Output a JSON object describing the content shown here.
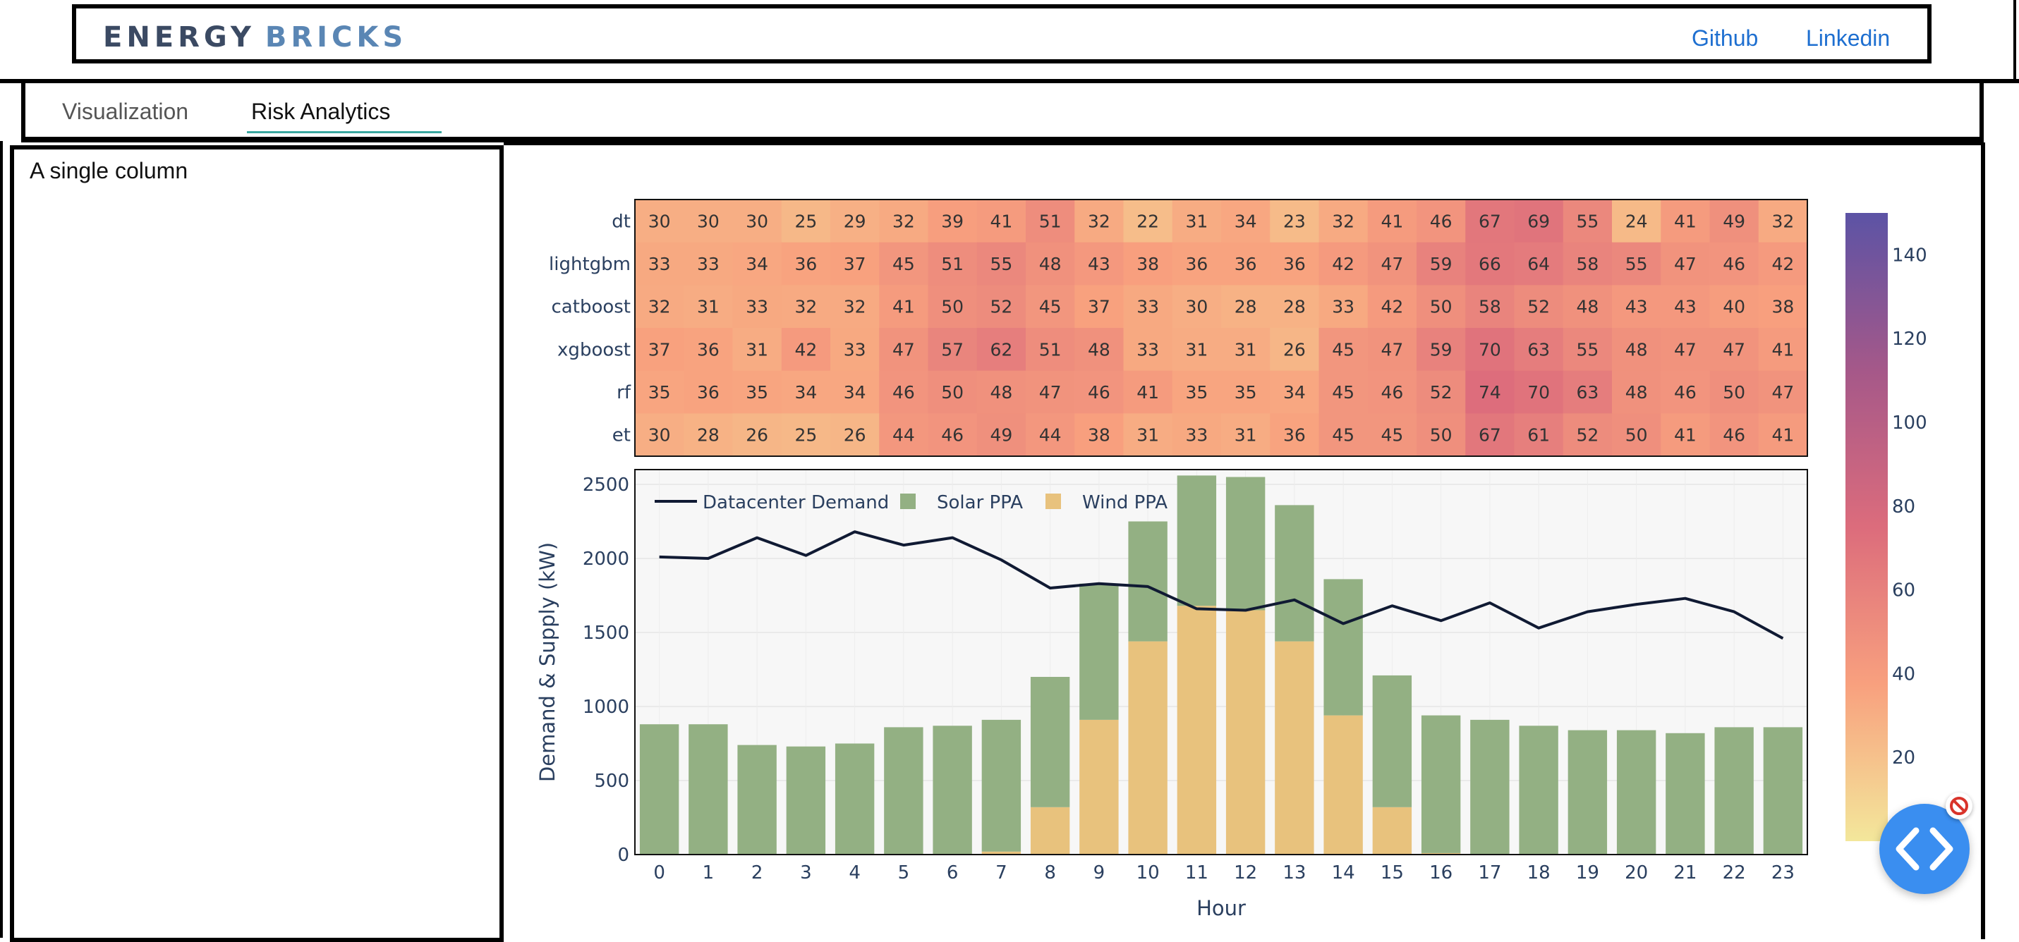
{
  "header": {
    "brand_word1": "ENERGY",
    "brand_word2": "BRICKS",
    "links": [
      "Github",
      "Linkedin"
    ]
  },
  "tabs": [
    {
      "label": "Visualization",
      "active": false
    },
    {
      "label": "Risk Analytics",
      "active": true
    }
  ],
  "left_column": {
    "text": "A single column"
  },
  "chart_data": [
    {
      "type": "heatmap",
      "rows": [
        "dt",
        "lightgbm",
        "catboost",
        "xgboost",
        "rf",
        "et"
      ],
      "columns": [
        "0",
        "1",
        "2",
        "3",
        "4",
        "5",
        "6",
        "7",
        "8",
        "9",
        "10",
        "11",
        "12",
        "13",
        "14",
        "15",
        "16",
        "17",
        "18",
        "19",
        "20",
        "21",
        "22",
        "23"
      ],
      "values": [
        [
          30,
          30,
          30,
          25,
          29,
          32,
          39,
          41,
          51,
          32,
          22,
          31,
          34,
          23,
          32,
          41,
          46,
          67,
          69,
          55,
          24,
          41,
          49,
          32
        ],
        [
          33,
          33,
          34,
          36,
          37,
          45,
          51,
          55,
          48,
          43,
          38,
          36,
          36,
          36,
          42,
          47,
          59,
          66,
          64,
          58,
          55,
          47,
          46,
          42
        ],
        [
          32,
          31,
          33,
          32,
          32,
          41,
          50,
          52,
          45,
          37,
          33,
          30,
          28,
          28,
          33,
          42,
          50,
          58,
          52,
          48,
          43,
          43,
          40,
          38
        ],
        [
          37,
          36,
          31,
          42,
          33,
          47,
          57,
          62,
          51,
          48,
          33,
          31,
          31,
          26,
          45,
          47,
          59,
          70,
          63,
          55,
          48,
          47,
          47,
          41
        ],
        [
          35,
          36,
          35,
          34,
          34,
          46,
          50,
          48,
          47,
          46,
          41,
          35,
          35,
          34,
          45,
          46,
          52,
          74,
          70,
          63,
          48,
          46,
          50,
          47
        ],
        [
          30,
          28,
          26,
          25,
          26,
          44,
          46,
          49,
          44,
          38,
          31,
          33,
          31,
          36,
          45,
          45,
          50,
          67,
          61,
          52,
          50,
          41,
          46,
          41
        ]
      ],
      "colorscale": [
        "#f3e79b",
        "#f8a07e",
        "#dc6c7c",
        "#a55889",
        "#5c53a5"
      ],
      "colorbar": {
        "range": [
          0,
          150
        ],
        "ticks": [
          20,
          40,
          60,
          80,
          100,
          120,
          140
        ]
      }
    },
    {
      "type": "bar",
      "stacked": true,
      "x": [
        0,
        1,
        2,
        3,
        4,
        5,
        6,
        7,
        8,
        9,
        10,
        11,
        12,
        13,
        14,
        15,
        16,
        17,
        18,
        19,
        20,
        21,
        22,
        23
      ],
      "xlabel": "Hour",
      "ylabel": "Demand & Supply (kW)",
      "ylim": [
        0,
        2600
      ],
      "yticks": [
        0,
        500,
        1000,
        1500,
        2000,
        2500
      ],
      "legend_position": "top-left",
      "series": [
        {
          "name": "Wind PPA",
          "kind": "bar",
          "color": "#e8c27d",
          "values": [
            0,
            0,
            0,
            0,
            0,
            0,
            0,
            20,
            320,
            910,
            1440,
            1680,
            1650,
            1440,
            940,
            320,
            10,
            0,
            0,
            0,
            0,
            0,
            0,
            0
          ]
        },
        {
          "name": "Solar PPA",
          "kind": "bar",
          "color": "#93b083",
          "values": [
            880,
            880,
            740,
            730,
            750,
            860,
            870,
            890,
            880,
            920,
            810,
            880,
            900,
            920,
            920,
            890,
            930,
            910,
            870,
            840,
            840,
            820,
            860,
            860
          ]
        },
        {
          "name": "Datacenter Demand",
          "kind": "line",
          "color": "#101a33",
          "values": [
            2010,
            2000,
            2140,
            2020,
            2180,
            2090,
            2140,
            1990,
            1800,
            1830,
            1810,
            1660,
            1650,
            1720,
            1560,
            1680,
            1580,
            1700,
            1530,
            1640,
            1690,
            1730,
            1640,
            1460
          ]
        }
      ]
    }
  ]
}
